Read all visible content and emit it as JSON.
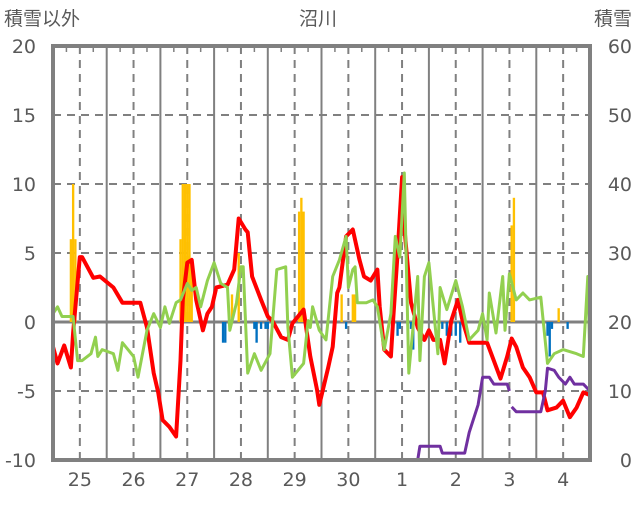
{
  "chart_data": {
    "type": "line",
    "title": "沼川",
    "ylabel_left": "積雪以外",
    "ylabel_right": "積雪",
    "ylim_left": [
      -10,
      20
    ],
    "ylim_right": [
      0,
      60
    ],
    "yticks_left": [
      "20",
      "15",
      "10",
      "5",
      "0",
      "-5",
      "-10"
    ],
    "yticks_right": [
      "60",
      "50",
      "40",
      "30",
      "20",
      "10",
      "0"
    ],
    "x_unit": "hours from start of day 25",
    "xlim": [
      0,
      240
    ],
    "x_tick_labels": [
      "25",
      "26",
      "27",
      "28",
      "29",
      "30",
      "1",
      "2",
      "3",
      "4"
    ],
    "grid": true,
    "colors": {
      "red": "#FF0000",
      "green": "#92D050",
      "purple": "#7030A0",
      "orange": "#FFC000",
      "blue": "#0070C0",
      "axis": "#808080"
    },
    "series": [
      {
        "name": "red-line",
        "axis": "left",
        "color": "#FF0000",
        "points": [
          [
            0,
            -1.8
          ],
          [
            2,
            -3.0
          ],
          [
            5,
            -1.7
          ],
          [
            8,
            -3.3
          ],
          [
            9,
            -0.8
          ],
          [
            12,
            4.7
          ],
          [
            13,
            4.7
          ],
          [
            18,
            3.2
          ],
          [
            21,
            3.3
          ],
          [
            27,
            2.5
          ],
          [
            31,
            1.4
          ],
          [
            39,
            1.4
          ],
          [
            42,
            -0.4
          ],
          [
            45,
            -3.7
          ],
          [
            47,
            -5.1
          ],
          [
            49,
            -7.1
          ],
          [
            52,
            -7.6
          ],
          [
            55,
            -8.3
          ],
          [
            57,
            -2.8
          ],
          [
            58,
            1.6
          ],
          [
            60,
            4.3
          ],
          [
            62,
            4.5
          ],
          [
            64,
            1.6
          ],
          [
            67,
            -0.6
          ],
          [
            69,
            0.6
          ],
          [
            71,
            1.1
          ],
          [
            73,
            2.5
          ],
          [
            78,
            2.7
          ],
          [
            81,
            3.8
          ],
          [
            83,
            7.5
          ],
          [
            86,
            6.7
          ],
          [
            87,
            6.5
          ],
          [
            89,
            3.3
          ],
          [
            93,
            1.6
          ],
          [
            96,
            0.4
          ],
          [
            98,
            0.1
          ],
          [
            102,
            -1.1
          ],
          [
            105,
            -1.3
          ],
          [
            107,
            -0.1
          ],
          [
            112,
            0.9
          ],
          [
            115,
            -2.5
          ],
          [
            118,
            -4.9
          ],
          [
            119,
            -6.0
          ],
          [
            123,
            -3.3
          ],
          [
            125,
            -1.8
          ],
          [
            127,
            2.1
          ],
          [
            128,
            2.5
          ],
          [
            131,
            6.2
          ],
          [
            134,
            6.7
          ],
          [
            137,
            4.5
          ],
          [
            139,
            3.3
          ],
          [
            142,
            3.0
          ],
          [
            145,
            3.8
          ],
          [
            146,
            1.1
          ],
          [
            148,
            -2.0
          ],
          [
            151,
            -2.5
          ],
          [
            152,
            0.1
          ],
          [
            154,
            5.0
          ],
          [
            156,
            10.5
          ],
          [
            157,
            6.9
          ],
          [
            160,
            1.4
          ],
          [
            163,
            -0.4
          ],
          [
            166,
            -1.3
          ],
          [
            168,
            -0.6
          ],
          [
            170,
            -1.3
          ],
          [
            173,
            -1.3
          ],
          [
            175,
            -3.0
          ],
          [
            178,
            0.1
          ],
          [
            181,
            1.6
          ],
          [
            183,
            0.1
          ],
          [
            186,
            -1.5
          ],
          [
            194,
            -1.5
          ],
          [
            197,
            -2.8
          ],
          [
            200,
            -4.1
          ],
          [
            203,
            -2.5
          ],
          [
            205,
            -1.2
          ],
          [
            207,
            -1.8
          ],
          [
            210,
            -3.3
          ],
          [
            213,
            -4.0
          ],
          [
            216,
            -5.1
          ],
          [
            219,
            -5.1
          ],
          [
            221,
            -6.4
          ],
          [
            225,
            -6.2
          ],
          [
            228,
            -5.7
          ],
          [
            231,
            -6.9
          ],
          [
            234,
            -6.2
          ],
          [
            237,
            -5.1
          ],
          [
            240,
            -5.3
          ]
        ]
      },
      {
        "name": "green-line",
        "axis": "left",
        "color": "#92D050",
        "points": [
          [
            0,
            0.6
          ],
          [
            2,
            1.1
          ],
          [
            4,
            0.4
          ],
          [
            9,
            0.4
          ],
          [
            11,
            -2.8
          ],
          [
            13,
            -2.8
          ],
          [
            17,
            -2.3
          ],
          [
            19,
            -1.1
          ],
          [
            20,
            -2.5
          ],
          [
            22,
            -2.0
          ],
          [
            27,
            -2.3
          ],
          [
            29,
            -3.5
          ],
          [
            31,
            -1.5
          ],
          [
            36,
            -2.5
          ],
          [
            38,
            -4.0
          ],
          [
            40,
            -2.3
          ],
          [
            42,
            -0.6
          ],
          [
            45,
            0.6
          ],
          [
            48,
            -0.4
          ],
          [
            50,
            1.1
          ],
          [
            52,
            -0.1
          ],
          [
            55,
            1.4
          ],
          [
            57,
            1.6
          ],
          [
            60,
            2.8
          ],
          [
            62,
            2.3
          ],
          [
            64,
            2.5
          ],
          [
            66,
            1.1
          ],
          [
            69,
            3.0
          ],
          [
            72,
            4.3
          ],
          [
            75,
            2.8
          ],
          [
            78,
            2.5
          ],
          [
            79,
            -0.6
          ],
          [
            82,
            1.4
          ],
          [
            84,
            4.0
          ],
          [
            85,
            4.0
          ],
          [
            87,
            -3.7
          ],
          [
            90,
            -2.3
          ],
          [
            93,
            -3.5
          ],
          [
            97,
            -2.3
          ],
          [
            100,
            3.8
          ],
          [
            104,
            4.0
          ],
          [
            105,
            -0.4
          ],
          [
            107,
            -4.0
          ],
          [
            112,
            -3.0
          ],
          [
            114,
            0.1
          ],
          [
            115,
            -0.4
          ],
          [
            116,
            1.1
          ],
          [
            119,
            -0.6
          ],
          [
            122,
            -1.3
          ],
          [
            125,
            3.3
          ],
          [
            128,
            4.5
          ],
          [
            131,
            6.2
          ],
          [
            132,
            2.5
          ],
          [
            134,
            3.8
          ],
          [
            135,
            4.0
          ],
          [
            136,
            1.4
          ],
          [
            140,
            1.4
          ],
          [
            143,
            1.6
          ],
          [
            145,
            1.1
          ],
          [
            148,
            -2.0
          ],
          [
            151,
            0.6
          ],
          [
            153,
            6.2
          ],
          [
            155,
            4.7
          ],
          [
            157,
            10.8
          ],
          [
            159,
            -3.7
          ],
          [
            163,
            3.3
          ],
          [
            164,
            -2.8
          ],
          [
            166,
            3.3
          ],
          [
            168,
            4.3
          ],
          [
            172,
            -2.3
          ],
          [
            173,
            2.5
          ],
          [
            176,
            0.9
          ],
          [
            180,
            3.0
          ],
          [
            183,
            1.1
          ],
          [
            186,
            -1.3
          ],
          [
            190,
            -0.6
          ],
          [
            192,
            0.6
          ],
          [
            194,
            -1.3
          ],
          [
            195,
            2.1
          ],
          [
            198,
            -0.8
          ],
          [
            201,
            3.3
          ],
          [
            202,
            -0.6
          ],
          [
            204,
            3.5
          ],
          [
            207,
            1.6
          ],
          [
            210,
            2.1
          ],
          [
            213,
            1.6
          ],
          [
            218,
            1.8
          ],
          [
            221,
            -3.0
          ],
          [
            224,
            -2.3
          ],
          [
            228,
            -2.0
          ],
          [
            234,
            -2.3
          ],
          [
            237,
            -2.5
          ],
          [
            239,
            3.3
          ],
          [
            240,
            -3.0
          ]
        ]
      },
      {
        "name": "snow-depth-line",
        "axis": "right",
        "color": "#7030A0",
        "points": [
          [
            0,
            0
          ],
          [
            163,
            0
          ],
          [
            164,
            2
          ],
          [
            173,
            2
          ],
          [
            174,
            1
          ],
          [
            184,
            1
          ],
          [
            186,
            4
          ],
          [
            190,
            8
          ],
          [
            192,
            12
          ],
          [
            195,
            12
          ],
          [
            197,
            11
          ],
          [
            203,
            11
          ],
          [
            204,
            10
          ],
          [
            204.5,
            null
          ],
          [
            205,
            7.7
          ],
          [
            207,
            7
          ],
          [
            218,
            7
          ],
          [
            220,
            10
          ],
          [
            221,
            13.3
          ],
          [
            224,
            13
          ],
          [
            226,
            12
          ],
          [
            229,
            11
          ],
          [
            231,
            12
          ],
          [
            233,
            11
          ],
          [
            237,
            11
          ],
          [
            240,
            10
          ]
        ]
      }
    ],
    "bars_positive": {
      "axis": "left",
      "color": "#FFC000",
      "values": [
        [
          8,
          6
        ],
        [
          9,
          10
        ],
        [
          10,
          6
        ],
        [
          57,
          6
        ],
        [
          58,
          10
        ],
        [
          59,
          10
        ],
        [
          60,
          10
        ],
        [
          61,
          10
        ],
        [
          62,
          4
        ],
        [
          80,
          2
        ],
        [
          83,
          5
        ],
        [
          110,
          8
        ],
        [
          111,
          9
        ],
        [
          112,
          8
        ],
        [
          129,
          2
        ],
        [
          134,
          2
        ],
        [
          135,
          2
        ],
        [
          205,
          7
        ],
        [
          206,
          9
        ],
        [
          226,
          1
        ]
      ]
    },
    "bars_negative": {
      "axis": "left",
      "color": "#0070C0",
      "values": [
        [
          76,
          -1.5
        ],
        [
          77,
          -1.5
        ],
        [
          79,
          -0.5
        ],
        [
          90,
          -0.5
        ],
        [
          91,
          -1.5
        ],
        [
          93,
          -0.5
        ],
        [
          95,
          -0.5
        ],
        [
          96,
          -0.5
        ],
        [
          126,
          -0.5
        ],
        [
          131,
          -0.5
        ],
        [
          154,
          -1
        ],
        [
          155,
          -0.5
        ],
        [
          160,
          -0.5
        ],
        [
          161,
          -2
        ],
        [
          174,
          -0.5
        ],
        [
          176,
          -1
        ],
        [
          178,
          -1
        ],
        [
          180,
          -1
        ],
        [
          182,
          -1.5
        ],
        [
          221,
          -1
        ],
        [
          222,
          -2.5
        ],
        [
          223,
          -0.5
        ],
        [
          230,
          -0.5
        ]
      ]
    }
  }
}
